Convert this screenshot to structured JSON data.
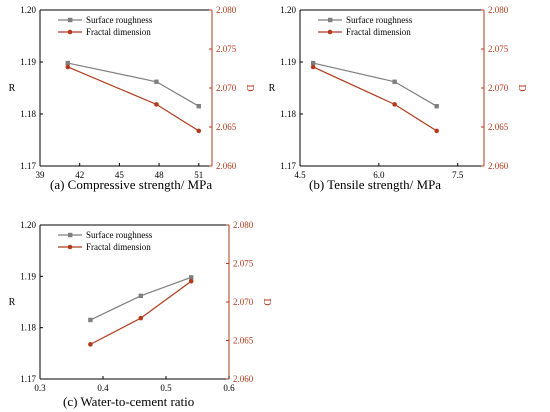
{
  "colors": {
    "roughness": "#7f7f7f",
    "fractal": "#b23a1c",
    "right_axis": "#b23a1c",
    "left_axis": "#000000"
  },
  "chart_data": [
    {
      "type": "line",
      "caption": "(a) Compressive strength/ MPa",
      "x_ticks": [
        "39",
        "42",
        "45",
        "48",
        "51"
      ],
      "xlim": [
        39,
        52
      ],
      "y_label": "R",
      "ylim": [
        1.17,
        1.2
      ],
      "y_ticks": [
        "1.17",
        "1.18",
        "1.19",
        "1.20"
      ],
      "y2_label": "D",
      "y2lim": [
        2.06,
        2.08
      ],
      "y2_ticks": [
        "2.060",
        "2.065",
        "2.070",
        "2.075",
        "2.080"
      ],
      "legend": [
        "Surface roughness",
        "Fractal dimension"
      ],
      "series": [
        {
          "name": "Surface roughness",
          "axis": "left",
          "x": [
            41.1,
            47.8,
            51.0
          ],
          "y": [
            1.1898,
            1.1862,
            1.1815
          ]
        },
        {
          "name": "Fractal dimension",
          "axis": "right",
          "x": [
            41.1,
            47.8,
            51.0
          ],
          "y": [
            2.0727,
            2.0679,
            2.0645
          ]
        }
      ]
    },
    {
      "type": "line",
      "caption": "(b) Tensile strength/ MPa",
      "x_ticks": [
        "4.5",
        "6.0",
        "7.5"
      ],
      "xlim": [
        4.5,
        8.0
      ],
      "y_label": "R",
      "ylim": [
        1.17,
        1.2
      ],
      "y_ticks": [
        "1.17",
        "1.18",
        "1.19",
        "1.20"
      ],
      "y2_label": "D",
      "y2lim": [
        2.06,
        2.08
      ],
      "y2_ticks": [
        "2.060",
        "2.065",
        "2.070",
        "2.075",
        "2.080"
      ],
      "legend": [
        "Surface roughness",
        "Fractal dimension"
      ],
      "series": [
        {
          "name": "Surface roughness",
          "axis": "left",
          "x": [
            4.75,
            6.3,
            7.1
          ],
          "y": [
            1.1898,
            1.1862,
            1.1815
          ]
        },
        {
          "name": "Fractal dimension",
          "axis": "right",
          "x": [
            4.75,
            6.3,
            7.1
          ],
          "y": [
            2.0727,
            2.0679,
            2.0645
          ]
        }
      ]
    },
    {
      "type": "line",
      "caption": "(c)  Water-to-cement ratio",
      "x_ticks": [
        "0.3",
        "0.4",
        "0.5",
        "0.6"
      ],
      "xlim": [
        0.3,
        0.6
      ],
      "y_label": "R",
      "ylim": [
        1.17,
        1.2
      ],
      "y_ticks": [
        "1.17",
        "1.18",
        "1.19",
        "1.20"
      ],
      "y2_label": "D",
      "y2lim": [
        2.06,
        2.08
      ],
      "y2_ticks": [
        "2.060",
        "2.065",
        "2.070",
        "2.075",
        "2.080"
      ],
      "legend": [
        "Surface roughness",
        "Fractal dimension"
      ],
      "series": [
        {
          "name": "Surface roughness",
          "axis": "left",
          "x": [
            0.38,
            0.46,
            0.54
          ],
          "y": [
            1.1815,
            1.1862,
            1.1898
          ]
        },
        {
          "name": "Fractal dimension",
          "axis": "right",
          "x": [
            0.38,
            0.46,
            0.54
          ],
          "y": [
            2.0645,
            2.0679,
            2.0727
          ]
        }
      ]
    }
  ]
}
